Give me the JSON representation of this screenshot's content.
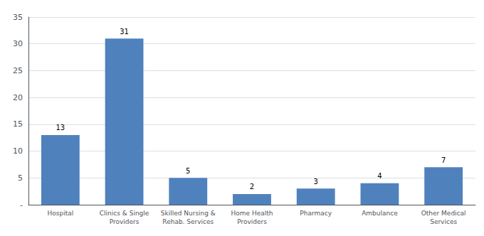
{
  "chart_data": {
    "type": "bar",
    "categories": [
      "Hospital",
      "Clinics & Single\nProviders",
      "Skilled Nursing &\nRehab. Services",
      "Home Health\nProviders",
      "Pharmacy",
      "Ambulance",
      "Other Medical\nServices"
    ],
    "values": [
      13,
      31,
      5,
      2,
      3,
      4,
      7
    ],
    "color": "#4f81bd",
    "ylim": [
      0,
      35
    ],
    "yticks": [
      {
        "value": 0,
        "label": "-"
      },
      5,
      10,
      15,
      20,
      25,
      30,
      35
    ],
    "grid": true,
    "data_labels": true
  }
}
